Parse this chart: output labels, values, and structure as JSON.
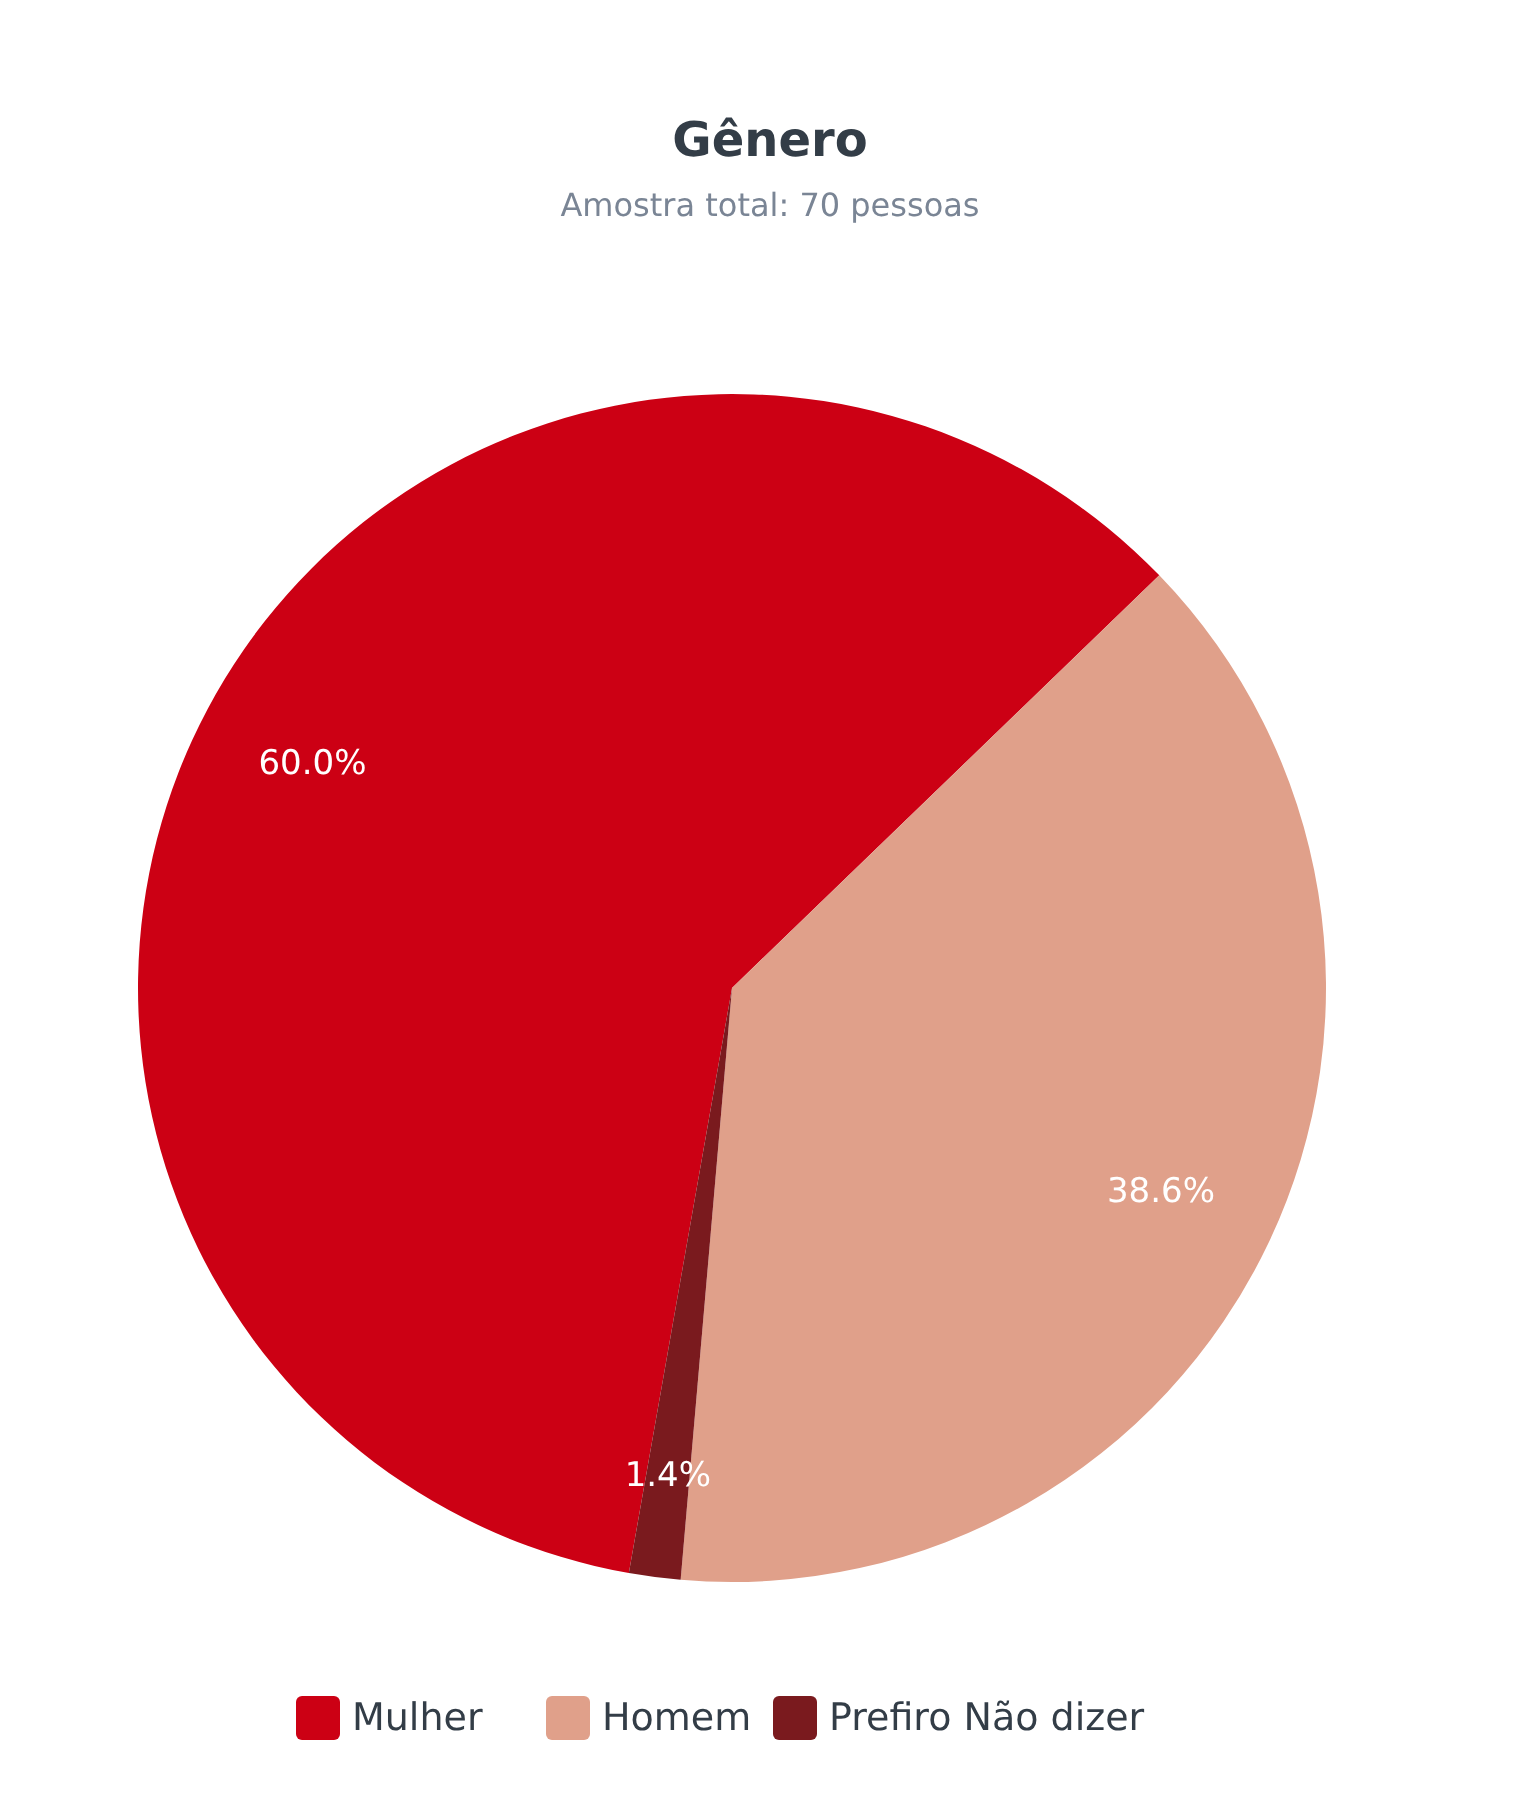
{
  "chart_data": {
    "type": "pie",
    "title": "Gênero",
    "subtitle": "Amostra total: 70 pessoas",
    "categories": [
      "Mulher",
      "Homem",
      "Prefiro Não dizer"
    ],
    "values": [
      60.0,
      38.6,
      1.4
    ],
    "colors": [
      "#cc0014",
      "#e0a08a",
      "#7a1a1e"
    ],
    "value_labels": [
      "60.0%",
      "38.6%",
      "1.4%"
    ],
    "legend": "bottom"
  }
}
